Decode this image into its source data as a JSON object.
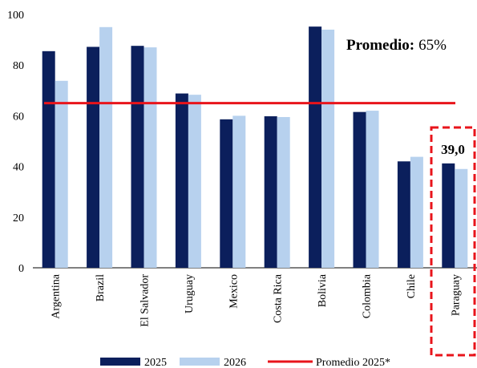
{
  "chart_data": {
    "type": "bar",
    "categories": [
      "Argentina",
      "Brazil",
      "El Salvador",
      "Uruguay",
      "Mexico",
      "Costa Rica",
      "Bolivia",
      "Colombia",
      "Chile",
      "Paraguay"
    ],
    "series": [
      {
        "name": "2025",
        "color": "#0b1f5c",
        "values": [
          85.5,
          87.2,
          87.6,
          68.8,
          58.6,
          59.8,
          95.2,
          61.5,
          42.0,
          41.2
        ]
      },
      {
        "name": "2026",
        "color": "#b7d1ee",
        "values": [
          73.8,
          95.0,
          87.0,
          68.3,
          60.0,
          59.5,
          94.0,
          62.0,
          43.8,
          39.0
        ]
      }
    ],
    "reference_line": {
      "name": "Promedio 2025*",
      "value": 65,
      "color": "#e8141b"
    },
    "ylim": [
      0,
      100
    ],
    "yticks": [
      "0",
      "20",
      "40",
      "60",
      "80",
      "100"
    ],
    "annotation": {
      "bold": "Promedio:",
      "value": "65%"
    },
    "highlight": {
      "category": "Paraguay",
      "label": "39,0",
      "color": "#e8141b"
    },
    "legend": [
      "2025",
      "2026",
      "Promedio 2025*"
    ],
    "legend_position": "bottom"
  }
}
